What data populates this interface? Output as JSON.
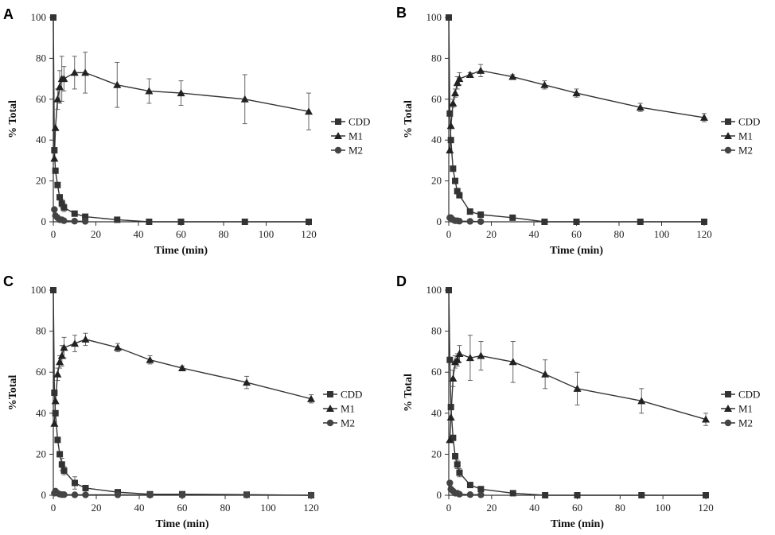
{
  "chart_data": [
    {
      "panel": "A",
      "type": "line",
      "xlabel": "Time (min)",
      "ylabel": "% Total",
      "xlim": [
        0,
        120
      ],
      "ylim": [
        0,
        100
      ],
      "xticks": [
        0,
        20,
        40,
        60,
        80,
        100,
        120
      ],
      "xtick_labels": [
        "0",
        "20",
        "40",
        "60",
        "80",
        "100",
        "120"
      ],
      "yticks": [
        0,
        20,
        40,
        60,
        80,
        100
      ],
      "ytick_labels": [
        "0",
        "20",
        "40",
        "60",
        "80",
        "100"
      ],
      "series": [
        {
          "name": "CDD",
          "marker": "square",
          "x": [
            0,
            0.5,
            1,
            2,
            3,
            4,
            5,
            10,
            15,
            30,
            45,
            60,
            90,
            120
          ],
          "y": [
            100,
            35,
            25,
            18,
            12,
            9,
            7,
            4,
            2.5,
            1,
            0,
            0,
            0,
            0
          ],
          "err": [
            0,
            0,
            0,
            0,
            0,
            2,
            2,
            1,
            1,
            0,
            0,
            0,
            0,
            0
          ]
        },
        {
          "name": "M1",
          "marker": "triangle",
          "x": [
            0.5,
            1,
            2,
            3,
            4,
            5,
            10,
            15,
            30,
            45,
            60,
            90,
            120
          ],
          "y": [
            31,
            46,
            60,
            66,
            70,
            70,
            73,
            73,
            67,
            64,
            63,
            60,
            54
          ],
          "err": [
            0,
            0,
            5,
            8,
            11,
            6,
            8,
            10,
            11,
            6,
            6,
            12,
            9
          ]
        },
        {
          "name": "M2",
          "marker": "circle",
          "x": [
            0.5,
            1,
            2,
            3,
            4,
            5,
            10,
            15
          ],
          "y": [
            6,
            3,
            2,
            1,
            1,
            0.5,
            0.3,
            0.2
          ],
          "err": [
            0,
            0,
            0,
            0,
            0,
            0,
            0,
            0
          ]
        }
      ]
    },
    {
      "panel": "B",
      "type": "line",
      "xlabel": "Time (min)",
      "ylabel": "% Total",
      "xlim": [
        0,
        120
      ],
      "ylim": [
        0,
        100
      ],
      "xticks": [
        0,
        20,
        40,
        60,
        80,
        100,
        120
      ],
      "xtick_labels": [
        "0",
        "20",
        "40",
        "60",
        "80",
        "100",
        "120"
      ],
      "yticks": [
        0,
        20,
        40,
        60,
        80,
        100
      ],
      "ytick_labels": [
        "0",
        "20",
        "40",
        "60",
        "80",
        "100"
      ],
      "series": [
        {
          "name": "CDD",
          "marker": "square",
          "x": [
            0,
            0.5,
            1,
            2,
            3,
            4,
            5,
            10,
            15,
            30,
            45,
            60,
            90,
            120
          ],
          "y": [
            100,
            53,
            40,
            26,
            20,
            15,
            13,
            5,
            3.5,
            2,
            0,
            0,
            0,
            0
          ],
          "err": [
            0,
            0,
            0,
            0,
            0,
            1,
            1,
            0,
            0,
            0,
            0,
            0,
            0,
            0
          ]
        },
        {
          "name": "M1",
          "marker": "triangle",
          "x": [
            0.5,
            1,
            2,
            3,
            4,
            5,
            10,
            15,
            30,
            45,
            60,
            90,
            120
          ],
          "y": [
            35,
            47,
            58,
            63,
            68,
            70,
            72,
            74,
            71,
            67,
            63,
            56,
            51
          ],
          "err": [
            0,
            0,
            2,
            2,
            3,
            3,
            1,
            3,
            1,
            2,
            2,
            2,
            2
          ]
        },
        {
          "name": "M2",
          "marker": "circle",
          "x": [
            0.5,
            1,
            2,
            3,
            4,
            5,
            10,
            15
          ],
          "y": [
            2,
            2,
            1,
            0.5,
            0.5,
            0.3,
            0.2,
            0.1
          ],
          "err": [
            0,
            0,
            0,
            0,
            0,
            0,
            0,
            0
          ]
        }
      ]
    },
    {
      "panel": "C",
      "type": "line",
      "xlabel": "Time (min)",
      "ylabel": "%Total",
      "xlim": [
        0,
        120
      ],
      "ylim": [
        0,
        100
      ],
      "xticks": [
        0,
        20,
        40,
        60,
        80,
        100,
        120
      ],
      "xtick_labels": [
        "0",
        "20",
        "40",
        "60",
        "80",
        "100",
        "120"
      ],
      "yticks": [
        0,
        20,
        40,
        60,
        80,
        100
      ],
      "ytick_labels": [
        "0",
        "20",
        "40",
        "60",
        "80",
        "100"
      ],
      "series": [
        {
          "name": "CDD",
          "marker": "square",
          "x": [
            0,
            0.5,
            1,
            2,
            3,
            4,
            5,
            10,
            15,
            30,
            45,
            60,
            90,
            120
          ],
          "y": [
            100,
            50,
            40,
            27,
            20,
            15,
            12,
            6,
            3.5,
            1.5,
            0.5,
            0.5,
            0.3,
            0
          ],
          "err": [
            0,
            0,
            0,
            0,
            0,
            3,
            2,
            3,
            1,
            0,
            0,
            0,
            0,
            0
          ]
        },
        {
          "name": "M1",
          "marker": "triangle",
          "x": [
            0.5,
            1,
            2,
            3,
            4,
            5,
            10,
            15,
            30,
            45,
            60,
            90,
            120
          ],
          "y": [
            35,
            46,
            59,
            65,
            68,
            72,
            74,
            76,
            72,
            66,
            62,
            55,
            47
          ],
          "err": [
            0,
            0,
            3,
            3,
            5,
            5,
            4,
            3,
            2,
            2,
            1,
            3,
            2
          ]
        },
        {
          "name": "M2",
          "marker": "circle",
          "x": [
            0.5,
            1,
            2,
            3,
            4,
            5,
            10,
            15,
            30,
            45,
            60,
            90,
            120
          ],
          "y": [
            1,
            2,
            1,
            0.5,
            0.3,
            0.3,
            0.2,
            0.2,
            0.2,
            0.1,
            0.1,
            0.1,
            0
          ],
          "err": [
            0,
            0,
            0,
            0,
            0,
            0,
            0,
            0,
            0,
            0,
            0,
            0,
            0
          ]
        }
      ]
    },
    {
      "panel": "D",
      "type": "line",
      "xlabel": "Time (min)",
      "ylabel": "% Total",
      "xlim": [
        0,
        120
      ],
      "ylim": [
        0,
        100
      ],
      "xticks": [
        0,
        20,
        40,
        60,
        80,
        100,
        120
      ],
      "xtick_labels": [
        "0",
        "20",
        "40",
        "60",
        "80",
        "100",
        "120"
      ],
      "yticks": [
        0,
        20,
        40,
        60,
        80,
        100
      ],
      "ytick_labels": [
        "0",
        "20",
        "40",
        "60",
        "80",
        "100"
      ],
      "series": [
        {
          "name": "CDD",
          "marker": "square",
          "x": [
            0,
            0.5,
            1,
            2,
            3,
            4,
            5,
            10,
            15,
            30,
            45,
            60,
            90,
            120
          ],
          "y": [
            100,
            66,
            43,
            28,
            19,
            15,
            11,
            5,
            3,
            1,
            0,
            0,
            0,
            0
          ],
          "err": [
            0,
            0,
            0,
            0,
            0,
            2,
            2,
            1,
            1,
            0,
            0,
            0,
            0,
            0
          ]
        },
        {
          "name": "M1",
          "marker": "triangle",
          "x": [
            0.5,
            1,
            2,
            3,
            4,
            5,
            10,
            15,
            30,
            45,
            60,
            90,
            120
          ],
          "y": [
            27,
            38,
            57,
            65,
            66,
            69,
            67,
            68,
            65,
            59,
            52,
            46,
            37
          ],
          "err": [
            0,
            0,
            4,
            3,
            3,
            4,
            11,
            7,
            10,
            7,
            8,
            6,
            3
          ]
        },
        {
          "name": "M2",
          "marker": "circle",
          "x": [
            0.5,
            1,
            2,
            3,
            4,
            5,
            10,
            15
          ],
          "y": [
            6,
            3,
            2,
            1,
            1,
            0.5,
            0.3,
            0.2
          ],
          "err": [
            0,
            0,
            0,
            0,
            0,
            0,
            0,
            0
          ]
        }
      ]
    }
  ]
}
